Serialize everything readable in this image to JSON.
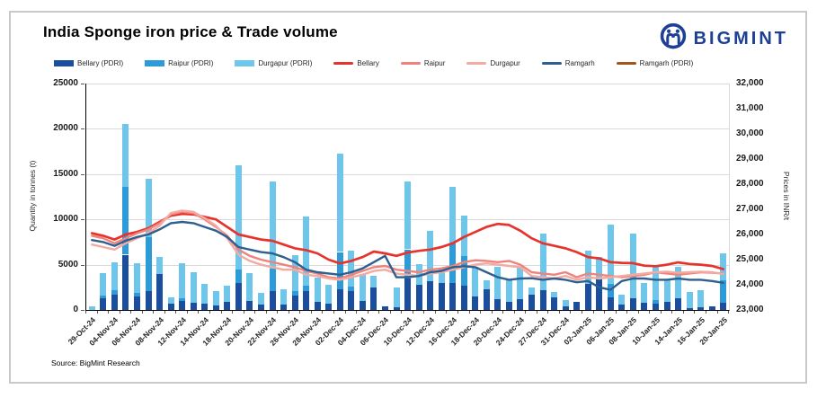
{
  "title": "India Sponge iron price & Trade volume",
  "source": "Source: BigMint Research",
  "logo": {
    "text": "BIGMINT",
    "color": "#1d3f94"
  },
  "colors": {
    "bellary_pdri": "#1b4f9e",
    "raipur_pdri": "#2d9bd8",
    "durgapur_pdri": "#6ec6ea",
    "bellary": "#e6332b",
    "raipur": "#ef837b",
    "durgapur": "#f2aaa3",
    "ramgarh": "#2e5f8f",
    "ramgarh_pdri": "#a3561b",
    "gridline": "#d9d9d9"
  },
  "legend": [
    {
      "label": "Bellary (PDRI)",
      "type": "bar",
      "color": "#1b4f9e"
    },
    {
      "label": "Raipur (PDRI)",
      "type": "bar",
      "color": "#2d9bd8"
    },
    {
      "label": "Durgapur (PDRI)",
      "type": "bar",
      "color": "#6ec6ea"
    },
    {
      "label": "Bellary",
      "type": "line",
      "color": "#e6332b"
    },
    {
      "label": "Raipur",
      "type": "line",
      "color": "#ef837b"
    },
    {
      "label": "Durgapur",
      "type": "line",
      "color": "#f2aaa3"
    },
    {
      "label": "Ramgarh",
      "type": "line",
      "color": "#2e5f8f"
    },
    {
      "label": "Ramgarh (PDRI)",
      "type": "line",
      "color": "#a3561b"
    }
  ],
  "chart_data": {
    "type": "bar-line-combo",
    "bar_mode": "stacked",
    "title": "India Sponge iron price & Trade volume",
    "left_axis": {
      "label": "Quantity in tonnes (t)",
      "min": 0,
      "max": 25000,
      "ticks": [
        0,
        5000,
        10000,
        15000,
        20000,
        25000
      ],
      "tick_labels": [
        "0",
        "5000",
        "10000",
        "15000",
        "20000",
        "25000"
      ]
    },
    "right_axis": {
      "label": "Prices in INR/t",
      "min": 23000,
      "max": 32000,
      "ticks": [
        23000,
        24000,
        25000,
        26000,
        27000,
        28000,
        29000,
        30000,
        31000,
        32000
      ],
      "tick_labels": [
        "23,000",
        "24,000",
        "25,000",
        "26,000",
        "27,000",
        "28,000",
        "29,000",
        "30,000",
        "31,000",
        "32,000"
      ]
    },
    "categories": [
      "29-Oct-24",
      "",
      "04-Nov-24",
      "",
      "06-Nov-24",
      "",
      "08-Nov-24",
      "",
      "12-Nov-24",
      "",
      "14-Nov-24",
      "",
      "18-Nov-24",
      "",
      "20-Nov-24",
      "",
      "22-Nov-24",
      "",
      "26-Nov-24",
      "",
      "28-Nov-24",
      "",
      "02-Dec-24",
      "",
      "04-Dec-24",
      "",
      "06-Dec-24",
      "",
      "10-Dec-24",
      "",
      "12-Dec-24",
      "",
      "16-Dec-24",
      "",
      "18-Dec-24",
      "",
      "20-Dec-24",
      "",
      "24-Dec-24",
      "",
      "27-Dec-24",
      "",
      "31-Dec-24",
      "",
      "02-Jan-25",
      "",
      "06-Jan-25",
      "",
      "08-Jan-25",
      "",
      "10-Jan-25",
      "",
      "14-Jan-25",
      "",
      "16-Jan-25",
      "",
      "20-Jan-25"
    ],
    "bar_series": [
      {
        "name": "Bellary (PDRI)",
        "color": "#1b4f9e",
        "values": [
          0,
          1300,
          1700,
          6100,
          1500,
          2100,
          4000,
          700,
          1000,
          800,
          700,
          500,
          900,
          3000,
          1000,
          600,
          2100,
          600,
          1600,
          2100,
          900,
          700,
          2300,
          2100,
          1000,
          2500,
          400,
          300,
          3500,
          2800,
          3200,
          3000,
          2950,
          2700,
          1500,
          2300,
          1200,
          900,
          1200,
          1700,
          2200,
          1400,
          400,
          900,
          2900,
          3500,
          1400,
          600,
          1300,
          800,
          700,
          900,
          1300,
          200,
          300,
          400,
          800
        ]
      },
      {
        "name": "Raipur (PDRI)",
        "color": "#2d9bd8",
        "values": [
          0,
          300,
          500,
          7500,
          400,
          5900,
          0,
          0,
          300,
          0,
          0,
          0,
          0,
          1500,
          0,
          0,
          2500,
          0,
          500,
          600,
          0,
          0,
          4100,
          500,
          0,
          0,
          0,
          0,
          3200,
          0,
          0,
          0,
          4350,
          3300,
          0,
          0,
          0,
          0,
          0,
          0,
          0,
          0,
          0,
          0,
          0,
          0,
          1500,
          0,
          0,
          0,
          400,
          0,
          0,
          0,
          0,
          0,
          2500
        ]
      },
      {
        "name": "Durgapur (PDRI)",
        "color": "#6ec6ea",
        "values": [
          400,
          2500,
          3100,
          6900,
          3300,
          6500,
          1900,
          700,
          3900,
          3400,
          2200,
          1600,
          1800,
          11500,
          3100,
          1300,
          9600,
          1700,
          4000,
          7600,
          2700,
          2100,
          10900,
          4000,
          3000,
          1300,
          0,
          2200,
          7500,
          2300,
          5500,
          1600,
          6300,
          4400,
          3300,
          1000,
          3600,
          2400,
          3600,
          800,
          6200,
          600,
          700,
          0,
          3700,
          2400,
          6500,
          1100,
          7100,
          2200,
          3700,
          2400,
          3500,
          1800,
          1900,
          0,
          3000
        ]
      }
    ],
    "line_series": [
      {
        "name": "Bellary",
        "color": "#e6332b",
        "values": [
          26050,
          25950,
          25800,
          26000,
          26100,
          26250,
          26500,
          26750,
          26820,
          26800,
          26700,
          26600,
          26300,
          26000,
          25900,
          25800,
          25750,
          25600,
          25450,
          25380,
          25250,
          25000,
          24850,
          24950,
          25100,
          25320,
          25250,
          25150,
          25280,
          25350,
          25400,
          25500,
          25650,
          25900,
          26100,
          26300,
          26420,
          26380,
          26150,
          25850,
          25650,
          25550,
          25450,
          25300,
          25100,
          25050,
          24900,
          24870,
          24860,
          24760,
          24740,
          24800,
          24890,
          24830,
          24800,
          24750,
          24620
        ]
      },
      {
        "name": "Raipur",
        "color": "#ef837b",
        "values": [
          25950,
          25850,
          25650,
          25850,
          26050,
          26200,
          26450,
          26800,
          26900,
          26850,
          26600,
          26300,
          25950,
          25400,
          25150,
          25000,
          24900,
          24800,
          24700,
          24550,
          24450,
          24300,
          24250,
          24400,
          24550,
          24700,
          24750,
          24600,
          24550,
          24500,
          24600,
          24650,
          24750,
          24900,
          24975,
          24950,
          24900,
          24950,
          24800,
          24500,
          24450,
          24400,
          24500,
          24300,
          24450,
          24400,
          24350,
          24300,
          24350,
          24400,
          24500,
          24450,
          24400,
          24450,
          24500,
          24480,
          24450
        ]
      },
      {
        "name": "Durgapur",
        "color": "#f2aaa3",
        "values": [
          25600,
          25500,
          25400,
          25650,
          25850,
          26050,
          26350,
          26850,
          26950,
          26900,
          26650,
          26350,
          25850,
          25200,
          24950,
          24800,
          24700,
          24600,
          24600,
          24400,
          24350,
          24250,
          24200,
          24300,
          24400,
          24550,
          24600,
          24450,
          24400,
          24350,
          24450,
          24500,
          24600,
          24700,
          24800,
          24850,
          24800,
          24750,
          24700,
          24350,
          24300,
          24250,
          24350,
          24200,
          24300,
          24250,
          24300,
          24350,
          24400,
          24450,
          24500,
          24520,
          24480,
          24500,
          24520,
          24500,
          24430
        ]
      },
      {
        "name": "Ramgarh",
        "color": "#2e5f8f",
        "values": [
          25780,
          25700,
          25550,
          25750,
          25900,
          26000,
          26200,
          26450,
          26500,
          26450,
          26300,
          26150,
          25900,
          25500,
          25400,
          25300,
          25250,
          25100,
          24900,
          24600,
          24500,
          24450,
          24400,
          24500,
          24650,
          24900,
          25150,
          24300,
          24300,
          24350,
          24500,
          24550,
          24700,
          24740,
          24700,
          24500,
          24300,
          24200,
          24250,
          24260,
          24200,
          24250,
          24200,
          24100,
          24150,
          23900,
          23800,
          24150,
          24250,
          24250,
          24200,
          24200,
          24250,
          24200,
          24200,
          24150,
          24080
        ]
      },
      {
        "name": "Ramgarh (PDRI)",
        "color": "#a3561b",
        "values": []
      }
    ]
  }
}
